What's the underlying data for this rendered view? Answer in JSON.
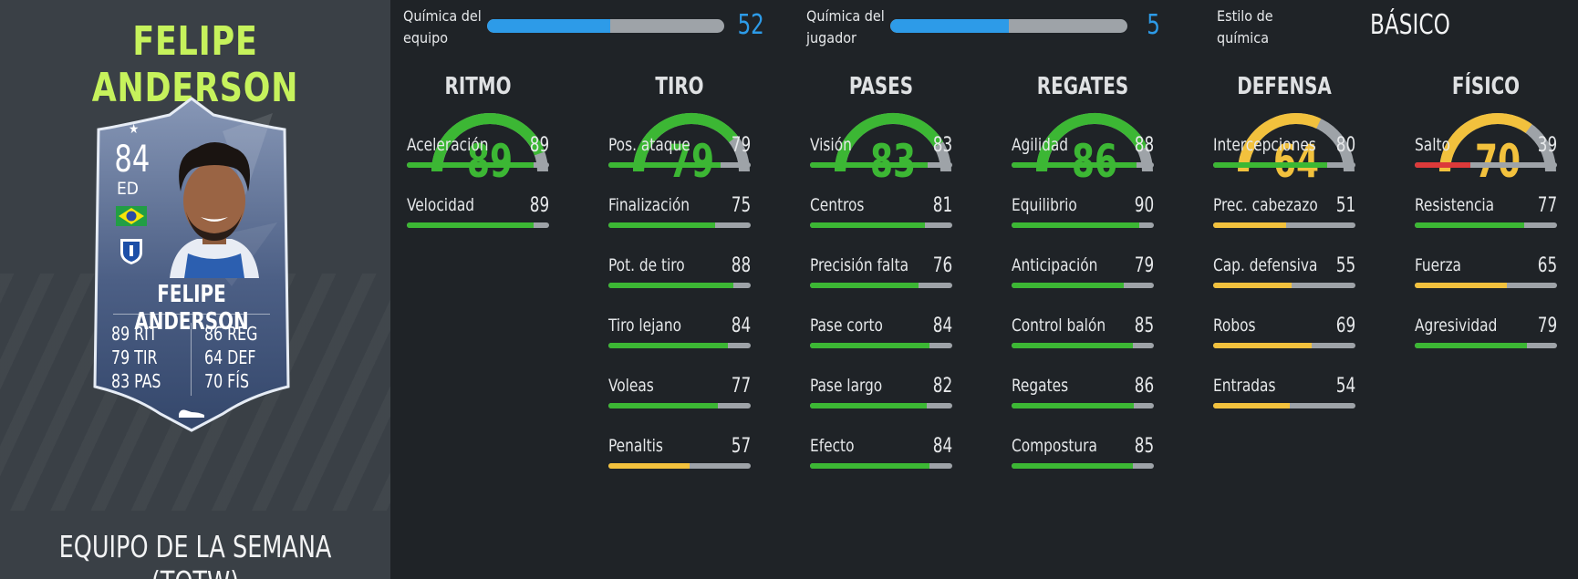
{
  "player": {
    "name": "FELIPE ANDERSON",
    "promo": "EQUIPO DE LA SEMANA (TOTW)"
  },
  "card": {
    "rating": "84",
    "position": "ED",
    "name": "FELIPE ANDERSON",
    "stats_left": [
      {
        "value": "89",
        "abbr": "RIT"
      },
      {
        "value": "79",
        "abbr": "TIR"
      },
      {
        "value": "83",
        "abbr": "PAS"
      }
    ],
    "stats_right": [
      {
        "value": "86",
        "abbr": "REG"
      },
      {
        "value": "64",
        "abbr": "DEF"
      },
      {
        "value": "70",
        "abbr": "FÍS"
      }
    ],
    "flag_icon": "brazil-flag-icon",
    "club_icon": "club-crest-icon"
  },
  "chemistry": {
    "team_label_1": "Química del",
    "team_label_2": "equipo",
    "team_value": "52",
    "team_max": 100,
    "player_label_1": "Química del",
    "player_label_2": "jugador",
    "player_value": "5",
    "player_max": 10,
    "style_label_1": "Estilo de",
    "style_label_2": "química",
    "style_value": "BÁSICO",
    "bar_color": "#2d9be8"
  },
  "colors": {
    "green": "#3cb734",
    "yellow": "#f2c13d",
    "red": "#dc3a3a",
    "track": "#9ea3a8"
  },
  "groups": [
    {
      "name": "RITMO",
      "value": "89",
      "color": "green",
      "stats": [
        {
          "label": "Aceleración",
          "value": "89",
          "color": "green"
        },
        {
          "label": "Velocidad",
          "value": "89",
          "color": "green"
        }
      ]
    },
    {
      "name": "TIRO",
      "value": "79",
      "color": "green",
      "stats": [
        {
          "label": "Pos. ataque",
          "value": "79",
          "color": "green"
        },
        {
          "label": "Finalización",
          "value": "75",
          "color": "green"
        },
        {
          "label": "Pot. de tiro",
          "value": "88",
          "color": "green"
        },
        {
          "label": "Tiro lejano",
          "value": "84",
          "color": "green"
        },
        {
          "label": "Voleas",
          "value": "77",
          "color": "green"
        },
        {
          "label": "Penaltis",
          "value": "57",
          "color": "yellow"
        }
      ]
    },
    {
      "name": "PASES",
      "value": "83",
      "color": "green",
      "stats": [
        {
          "label": "Visión",
          "value": "83",
          "color": "green"
        },
        {
          "label": "Centros",
          "value": "81",
          "color": "green"
        },
        {
          "label": "Precisión falta",
          "value": "76",
          "color": "green"
        },
        {
          "label": "Pase corto",
          "value": "84",
          "color": "green"
        },
        {
          "label": "Pase largo",
          "value": "82",
          "color": "green"
        },
        {
          "label": "Efecto",
          "value": "84",
          "color": "green"
        }
      ]
    },
    {
      "name": "REGATES",
      "value": "86",
      "color": "green",
      "stats": [
        {
          "label": "Agilidad",
          "value": "88",
          "color": "green"
        },
        {
          "label": "Equilibrio",
          "value": "90",
          "color": "green"
        },
        {
          "label": "Anticipación",
          "value": "79",
          "color": "green"
        },
        {
          "label": "Control balón",
          "value": "85",
          "color": "green"
        },
        {
          "label": "Regates",
          "value": "86",
          "color": "green"
        },
        {
          "label": "Compostura",
          "value": "85",
          "color": "green"
        }
      ]
    },
    {
      "name": "DEFENSA",
      "value": "64",
      "color": "yellow",
      "stats": [
        {
          "label": "Intercepciones",
          "value": "80",
          "color": "green"
        },
        {
          "label": "Prec. cabezazo",
          "value": "51",
          "color": "yellow"
        },
        {
          "label": "Cap. defensiva",
          "value": "55",
          "color": "yellow"
        },
        {
          "label": "Robos",
          "value": "69",
          "color": "yellow"
        },
        {
          "label": "Entradas",
          "value": "54",
          "color": "yellow"
        }
      ]
    },
    {
      "name": "FÍSICO",
      "value": "70",
      "color": "yellow",
      "stats": [
        {
          "label": "Salto",
          "value": "39",
          "color": "red"
        },
        {
          "label": "Resistencia",
          "value": "77",
          "color": "green"
        },
        {
          "label": "Fuerza",
          "value": "65",
          "color": "yellow"
        },
        {
          "label": "Agresividad",
          "value": "79",
          "color": "green"
        }
      ]
    }
  ]
}
